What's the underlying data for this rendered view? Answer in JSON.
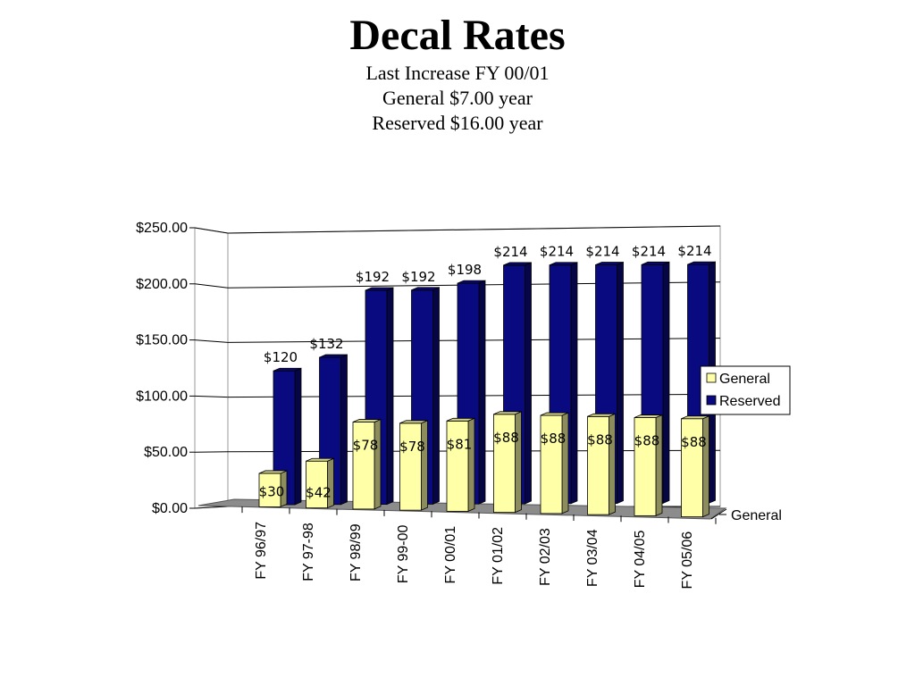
{
  "title": "Decal Rates",
  "subtitle_lines": [
    "Last Increase FY 00/01",
    "General $7.00 year",
    "Reserved $16.00 year"
  ],
  "colors": {
    "general": "#FFFFA8",
    "reserved": "#0A0A80",
    "floor": "#8C8C8C"
  },
  "chart_data": {
    "type": "bar",
    "categories": [
      "FY 96/97",
      "FY 97-98",
      "FY 98/99",
      "FY 99-00",
      "FY 00/01",
      "FY 01/02",
      "FY 02/03",
      "FY 03/04",
      "FY 04/05",
      "FY 05/06"
    ],
    "series": [
      {
        "name": "General",
        "values": [
          30,
          42,
          78,
          78,
          81,
          88,
          88,
          88,
          88,
          88
        ],
        "labels": [
          "$30",
          "$42",
          "$78",
          "$78",
          "$81",
          "$88",
          "$88",
          "$88",
          "$88",
          "$88"
        ]
      },
      {
        "name": "Reserved",
        "values": [
          120,
          132,
          192,
          192,
          198,
          214,
          214,
          214,
          214,
          214
        ],
        "labels": [
          "$120",
          "$132",
          "$192",
          "$192",
          "$198",
          "$214",
          "$214",
          "$214",
          "$214",
          "$214"
        ]
      }
    ],
    "y_ticks": [
      "$0.00",
      "$50.00",
      "$100.00",
      "$150.00",
      "$200.00",
      "$250.00"
    ],
    "ylim": [
      0,
      250
    ],
    "depth_axis_label": "General",
    "legend": [
      "General",
      "Reserved"
    ],
    "legend_position": "right",
    "grid": true
  }
}
